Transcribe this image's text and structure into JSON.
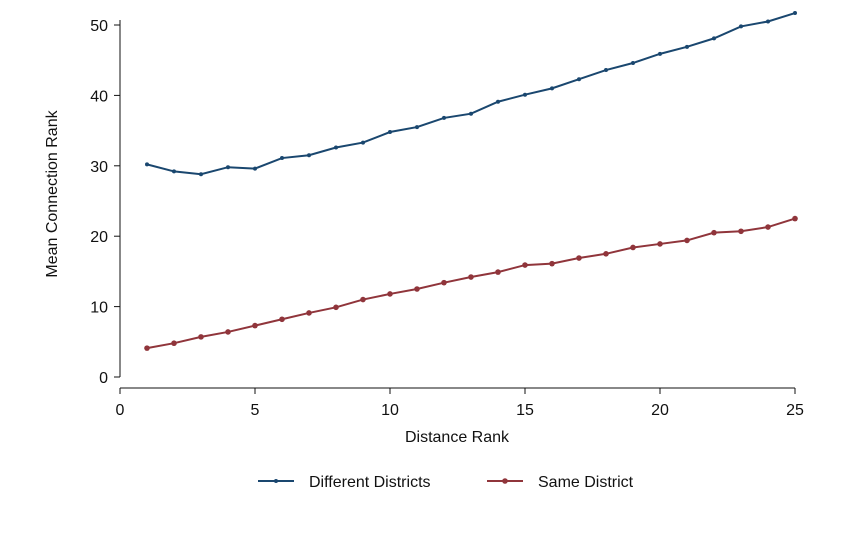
{
  "chart_data": {
    "type": "line",
    "title": "",
    "xlabel": "Distance Rank",
    "ylabel": "Mean Connection Rank",
    "xlim": [
      0,
      25
    ],
    "ylim": [
      0,
      50
    ],
    "xticks": [
      0,
      5,
      10,
      15,
      20,
      25
    ],
    "yticks": [
      0,
      10,
      20,
      30,
      40,
      50
    ],
    "grid": false,
    "legend_position": "bottom",
    "x": [
      1,
      2,
      3,
      4,
      5,
      6,
      7,
      8,
      9,
      10,
      11,
      12,
      13,
      14,
      15,
      16,
      17,
      18,
      19,
      20,
      21,
      22,
      23,
      24,
      25
    ],
    "series": [
      {
        "name": "Different Districts",
        "color": "#1a476f",
        "values": [
          30.2,
          29.2,
          28.8,
          29.8,
          29.6,
          31.1,
          31.5,
          32.6,
          33.3,
          34.8,
          35.5,
          36.8,
          37.4,
          39.1,
          40.1,
          41.0,
          42.3,
          43.6,
          44.6,
          45.9,
          46.9,
          48.1,
          49.8,
          50.5,
          51.7
        ]
      },
      {
        "name": "Same District",
        "color": "#90353b",
        "values": [
          4.1,
          4.8,
          5.7,
          6.4,
          7.3,
          8.2,
          9.1,
          9.9,
          11.0,
          11.8,
          12.5,
          13.4,
          14.2,
          14.9,
          15.9,
          16.1,
          16.9,
          17.5,
          18.4,
          18.9,
          19.4,
          20.5,
          20.7,
          21.3,
          22.5
        ]
      }
    ]
  }
}
